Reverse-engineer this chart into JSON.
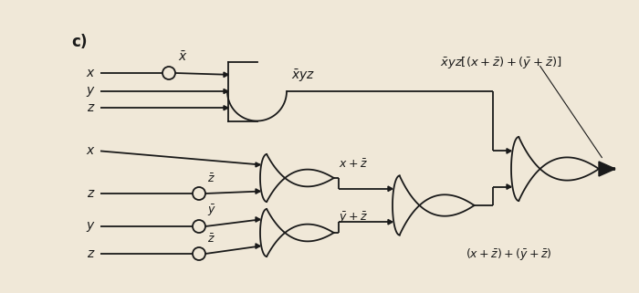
{
  "bg_color": "#f0e8d8",
  "line_color": "#1a1a1a",
  "fig_width": 7.0,
  "fig_height": 3.21,
  "dpi": 100
}
